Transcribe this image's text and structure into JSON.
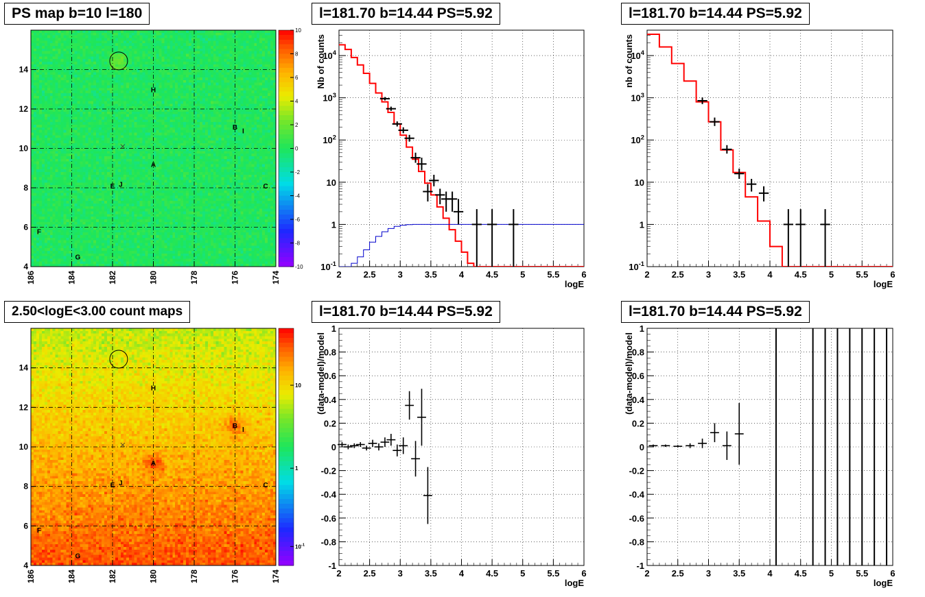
{
  "colors": {
    "model": "#ff0000",
    "efficiency": "#0000cc",
    "data": "#000000"
  },
  "chart_data": [
    {
      "type": "heatmap",
      "title": "PS map b=10 l=180",
      "xlim": [
        186,
        174
      ],
      "ylim": [
        4,
        16
      ],
      "x_ticks": [
        "186",
        "184",
        "182",
        "180",
        "178",
        "176",
        "174"
      ],
      "y_ticks": [
        "4",
        "6",
        "8",
        "10",
        "12",
        "14"
      ],
      "colorbar_ticks": [
        "10",
        "8",
        "6",
        "4",
        "2",
        "0",
        "-2",
        "-4",
        "-6",
        "-8",
        "-10"
      ],
      "colorbar_range": [
        -10,
        10
      ],
      "field_level": 0,
      "sources": [
        {
          "label": "A",
          "l": 180.0,
          "b": 9.2
        },
        {
          "label": "B",
          "l": 176.0,
          "b": 11.1
        },
        {
          "label": "C",
          "l": 174.5,
          "b": 8.1
        },
        {
          "label": "E",
          "l": 182.0,
          "b": 8.1
        },
        {
          "label": "F",
          "l": 185.6,
          "b": 5.8
        },
        {
          "label": "G",
          "l": 183.7,
          "b": 4.5
        },
        {
          "label": "H",
          "l": 180.0,
          "b": 13.0
        },
        {
          "label": "I",
          "l": 175.6,
          "b": 10.9
        },
        {
          "label": "J",
          "l": 181.6,
          "b": 8.2
        }
      ],
      "marked_circle": {
        "l": 181.7,
        "b": 14.44
      }
    },
    {
      "type": "line",
      "title": "l=181.70 b=14.44 PS=5.92",
      "xlabel": "logE",
      "ylabel": "Nb of counts",
      "xlim": [
        2,
        6
      ],
      "ylim": [
        0.1,
        40000
      ],
      "log_y": true,
      "grid": true,
      "x_ticks": [
        "2",
        "2.5",
        "3",
        "3.5",
        "4",
        "4.5",
        "5",
        "5.5",
        "6"
      ],
      "y_ticks": [
        "10^-1",
        "1",
        "10",
        "10^2",
        "10^3",
        "10^4"
      ],
      "series": [
        {
          "role": "model",
          "x": [
            2.0,
            2.1,
            2.2,
            2.3,
            2.4,
            2.5,
            2.6,
            2.7,
            2.8,
            2.9,
            3.0,
            3.1,
            3.2,
            3.3,
            3.4,
            3.5,
            3.6,
            3.7,
            3.8,
            3.9,
            4.0,
            4.1,
            4.2,
            4.3,
            4.4,
            6.0
          ],
          "y": [
            18000,
            14000,
            9000,
            6000,
            3800,
            2200,
            1300,
            800,
            450,
            240,
            130,
            68,
            35,
            18,
            9.5,
            5,
            2.6,
            1.4,
            0.75,
            0.4,
            0.22,
            0.12,
            0.1,
            0.1,
            0.1,
            0.1
          ]
        },
        {
          "role": "efficiency",
          "x": [
            2.0,
            2.1,
            2.2,
            2.3,
            2.4,
            2.5,
            2.6,
            2.7,
            2.8,
            2.9,
            3.0,
            3.1,
            3.2,
            3.3,
            3.4,
            6.0
          ],
          "y": [
            0.1,
            0.1,
            0.12,
            0.17,
            0.25,
            0.38,
            0.52,
            0.67,
            0.8,
            0.9,
            0.96,
            0.99,
            1.0,
            1.0,
            1.0,
            1.0
          ]
        },
        {
          "role": "data",
          "points": [
            {
              "x": 2.75,
              "y": 950,
              "err": 0.04
            },
            {
              "x": 2.85,
              "y": 550,
              "err": 0.05
            },
            {
              "x": 2.95,
              "y": 240,
              "err": 0.06
            },
            {
              "x": 3.05,
              "y": 170,
              "err": 0.07
            },
            {
              "x": 3.15,
              "y": 110,
              "err": 0.08
            },
            {
              "x": 3.25,
              "y": 38,
              "err": 0.12
            },
            {
              "x": 3.35,
              "y": 27,
              "err": 0.15
            },
            {
              "x": 3.45,
              "y": 6,
              "lo": 3.5,
              "hi": 9
            },
            {
              "x": 3.55,
              "y": 11,
              "lo": 8,
              "hi": 15
            },
            {
              "x": 3.65,
              "y": 5,
              "lo": 3,
              "hi": 7
            },
            {
              "x": 3.75,
              "y": 4,
              "lo": 2,
              "hi": 6
            },
            {
              "x": 3.85,
              "y": 4,
              "lo": 2,
              "hi": 6
            },
            {
              "x": 3.95,
              "y": 2,
              "lo": 1,
              "hi": 4
            },
            {
              "x": 4.25,
              "y": 1,
              "lo": 0.1,
              "hi": 2.3
            },
            {
              "x": 4.5,
              "y": 1,
              "lo": 0.1,
              "hi": 2.3
            },
            {
              "x": 4.85,
              "y": 1,
              "lo": 0.1,
              "hi": 2.3
            }
          ]
        }
      ]
    },
    {
      "type": "line",
      "title": "l=181.70 b=14.44 PS=5.92",
      "xlabel": "logE",
      "ylabel": "nb of counts",
      "xlim": [
        2,
        6
      ],
      "ylim": [
        0.1,
        40000
      ],
      "log_y": true,
      "grid": true,
      "x_ticks": [
        "2",
        "2.5",
        "3",
        "3.5",
        "4",
        "4.5",
        "5",
        "5.5",
        "6"
      ],
      "y_ticks": [
        "10^-1",
        "1",
        "10",
        "10^2",
        "10^3",
        "10^4"
      ],
      "series": [
        {
          "role": "model",
          "x": [
            2.0,
            2.2,
            2.4,
            2.6,
            2.8,
            3.0,
            3.2,
            3.4,
            3.6,
            3.8,
            4.0,
            4.2,
            4.4,
            6.0
          ],
          "y": [
            32000,
            16000,
            6500,
            2500,
            800,
            270,
            58,
            17,
            4.5,
            1.2,
            0.3,
            0.1,
            0.1,
            0.1
          ]
        },
        {
          "role": "data",
          "points": [
            {
              "x": 2.9,
              "y": 850,
              "err": 0.08
            },
            {
              "x": 3.1,
              "y": 270,
              "err": 0.1
            },
            {
              "x": 3.3,
              "y": 60,
              "err": 0.1
            },
            {
              "x": 3.5,
              "y": 16,
              "lo": 12,
              "hi": 21
            },
            {
              "x": 3.7,
              "y": 9,
              "lo": 6,
              "hi": 12
            },
            {
              "x": 3.9,
              "y": 5.5,
              "lo": 3.5,
              "hi": 8
            },
            {
              "x": 4.3,
              "y": 1,
              "lo": 0.1,
              "hi": 2.3
            },
            {
              "x": 4.5,
              "y": 1,
              "lo": 0.1,
              "hi": 2.3
            },
            {
              "x": 4.9,
              "y": 1,
              "lo": 0.1,
              "hi": 2.3
            }
          ]
        }
      ]
    },
    {
      "type": "heatmap",
      "title": "2.50<logE<3.00 count maps",
      "xlim": [
        186,
        174
      ],
      "ylim": [
        4,
        16
      ],
      "x_ticks": [
        "186",
        "184",
        "182",
        "180",
        "178",
        "176",
        "174"
      ],
      "y_ticks": [
        "4",
        "6",
        "8",
        "10",
        "12",
        "14"
      ],
      "colorbar_ticks": [
        "10",
        "1",
        "10^-1"
      ],
      "colorbar_log": true,
      "bright_spots": [
        {
          "l": 180.0,
          "b": 9.2
        },
        {
          "l": 176.0,
          "b": 11.1
        }
      ],
      "sources": [
        {
          "label": "A",
          "l": 180.0,
          "b": 9.2
        },
        {
          "label": "B",
          "l": 176.0,
          "b": 11.1
        },
        {
          "label": "C",
          "l": 174.5,
          "b": 8.1
        },
        {
          "label": "E",
          "l": 182.0,
          "b": 8.1
        },
        {
          "label": "F",
          "l": 185.6,
          "b": 5.8
        },
        {
          "label": "G",
          "l": 183.7,
          "b": 4.5
        },
        {
          "label": "H",
          "l": 180.0,
          "b": 13.0
        },
        {
          "label": "I",
          "l": 175.6,
          "b": 10.9
        },
        {
          "label": "J",
          "l": 181.6,
          "b": 8.2
        }
      ],
      "marked_circle": {
        "l": 181.7,
        "b": 14.44
      }
    },
    {
      "type": "scatter",
      "title": "l=181.70 b=14.44 PS=5.92",
      "xlabel": "logE",
      "ylabel": "(data-model)/model",
      "xlim": [
        2,
        6
      ],
      "ylim": [
        -1,
        1
      ],
      "grid": true,
      "x_ticks": [
        "2",
        "2.5",
        "3",
        "3.5",
        "4",
        "4.5",
        "5",
        "5.5",
        "6"
      ],
      "y_ticks": [
        "-1",
        "-0.8",
        "-0.6",
        "-0.4",
        "-0.2",
        "0",
        "0.2",
        "0.4",
        "0.6",
        "0.8",
        "1"
      ],
      "points": [
        {
          "x": 2.05,
          "y": 0.02,
          "err": 0.02
        },
        {
          "x": 2.15,
          "y": 0.0,
          "err": 0.02
        },
        {
          "x": 2.25,
          "y": 0.01,
          "err": 0.02
        },
        {
          "x": 2.35,
          "y": 0.02,
          "err": 0.02
        },
        {
          "x": 2.45,
          "y": -0.01,
          "err": 0.02
        },
        {
          "x": 2.55,
          "y": 0.03,
          "err": 0.03
        },
        {
          "x": 2.65,
          "y": 0.0,
          "err": 0.03
        },
        {
          "x": 2.75,
          "y": 0.04,
          "err": 0.04
        },
        {
          "x": 2.85,
          "y": 0.06,
          "err": 0.05
        },
        {
          "x": 2.95,
          "y": -0.03,
          "err": 0.05
        },
        {
          "x": 3.05,
          "y": 0.01,
          "err": 0.07
        },
        {
          "x": 3.15,
          "y": 0.35,
          "err": 0.12
        },
        {
          "x": 3.25,
          "y": -0.1,
          "err": 0.15
        },
        {
          "x": 3.35,
          "y": 0.25,
          "err": 0.24
        },
        {
          "x": 3.45,
          "y": -0.41,
          "err": 0.24
        }
      ]
    },
    {
      "type": "scatter",
      "title": "l=181.70 b=14.44 PS=5.92",
      "xlabel": "logE",
      "ylabel": "(data-model)/model",
      "xlim": [
        2,
        6
      ],
      "ylim": [
        -1,
        1
      ],
      "grid": true,
      "x_ticks": [
        "2",
        "2.5",
        "3",
        "3.5",
        "4",
        "4.5",
        "5",
        "5.5",
        "6"
      ],
      "y_ticks": [
        "-1",
        "-0.8",
        "-0.6",
        "-0.4",
        "-0.2",
        "0",
        "0.2",
        "0.4",
        "0.6",
        "0.8",
        "1"
      ],
      "points": [
        {
          "x": 2.1,
          "y": 0.01,
          "err": 0.01
        },
        {
          "x": 2.3,
          "y": 0.01,
          "err": 0.01
        },
        {
          "x": 2.5,
          "y": 0.005,
          "err": 0.01
        },
        {
          "x": 2.7,
          "y": 0.01,
          "err": 0.02
        },
        {
          "x": 2.9,
          "y": 0.03,
          "err": 0.04
        },
        {
          "x": 3.1,
          "y": 0.12,
          "err": 0.08
        },
        {
          "x": 3.3,
          "y": 0.01,
          "err": 0.12
        },
        {
          "x": 3.5,
          "y": 0.11,
          "err": 0.26
        }
      ],
      "full_range_bars_x": [
        4.1,
        4.7,
        4.9,
        5.1,
        5.3,
        5.5,
        5.7,
        5.9
      ]
    }
  ]
}
